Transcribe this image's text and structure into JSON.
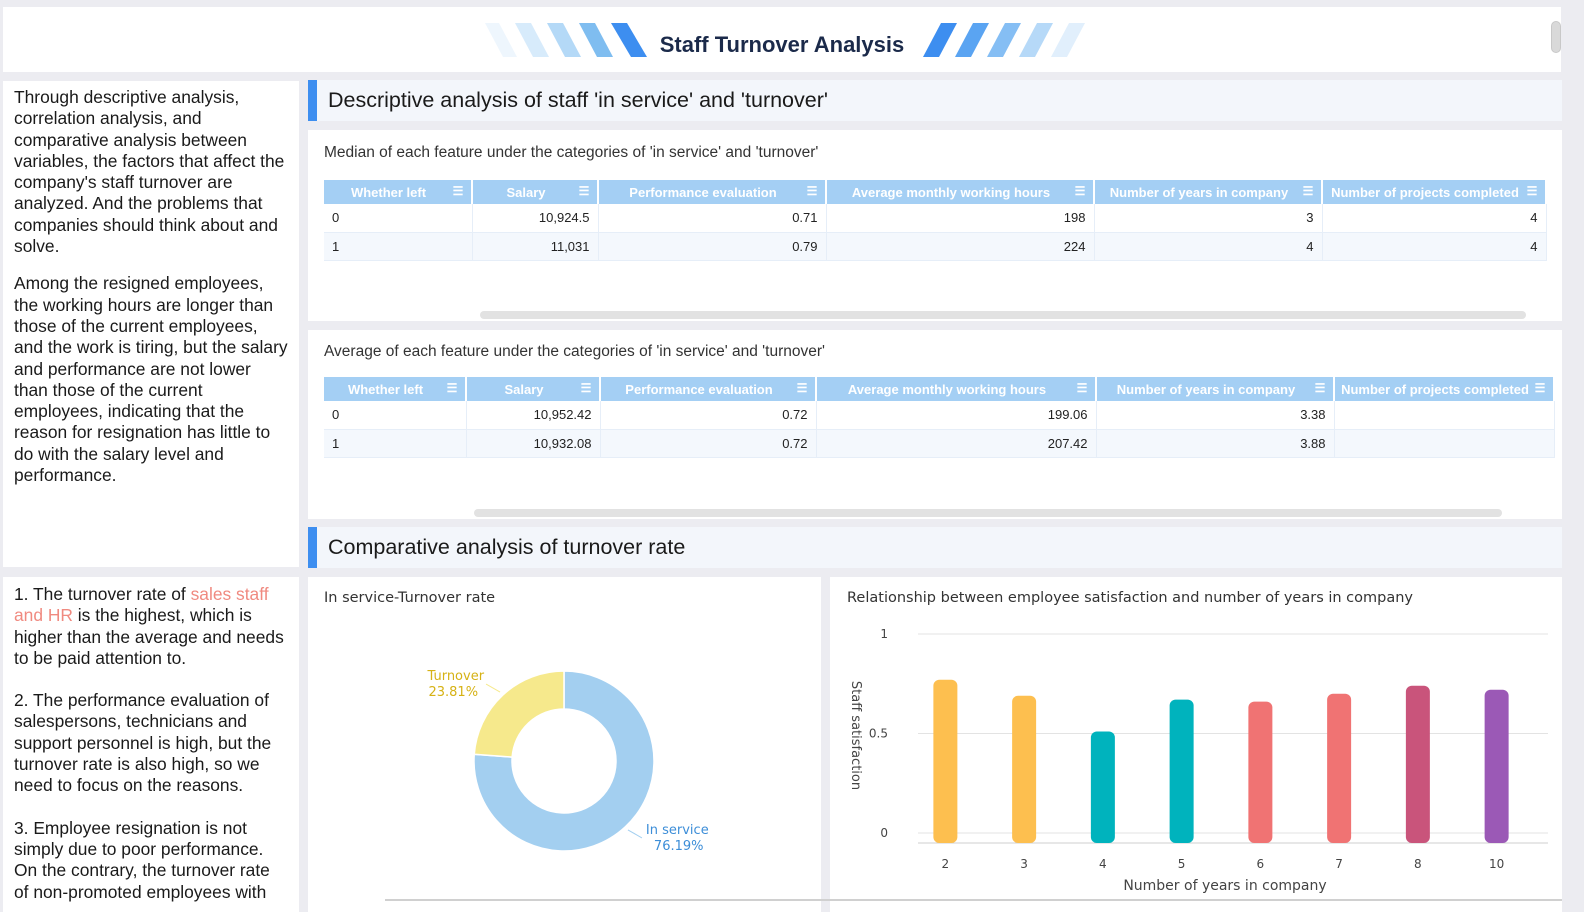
{
  "header": {
    "title": "Staff Turnover Analysis"
  },
  "left_top": {
    "paragraphs": [
      "Through descriptive analysis, correlation analysis, and comparative analysis between variables, the factors that affect the company's staff turnover are analyzed. And the problems that companies should think about and solve.",
      "Among the resigned employees, the working hours are longer than those of the current employees, and the work is tiring, but the salary and performance are not lower than those of the current employees, indicating that the reason for resignation has little to do with the salary level and performance."
    ]
  },
  "left_bottom": {
    "p1_before": "1. The turnover rate of ",
    "p1_highlight": "sales staff and HR",
    "p1_after": " is the highest, which is higher than the average and needs to be paid attention to.",
    "p2": "2. The performance evaluation of salespersons, technicians and support personnel is high, but the turnover rate is also high, so we need to focus on the reasons.",
    "p3": "3. Employee resignation is not simply due to poor performance. On the contrary, the turnover rate of non-promoted employees with"
  },
  "sections": {
    "descriptive": "Descriptive analysis of staff 'in service' and 'turnover'",
    "comparative": "Comparative analysis of turnover rate"
  },
  "median_table": {
    "caption": "Median of each feature under the categories of 'in service' and 'turnover'",
    "columns": [
      "Whether left",
      "Salary",
      "Performance evaluation",
      "Average monthly working hours",
      "Number of years in company",
      "Number of projects completed"
    ],
    "rows": [
      [
        "0",
        "10,924.5",
        "0.71",
        "198",
        "3",
        "4"
      ],
      [
        "1",
        "11,031",
        "0.79",
        "224",
        "4",
        "4"
      ]
    ]
  },
  "average_table": {
    "caption": "Average of each feature under the categories of 'in service' and 'turnover'",
    "columns": [
      "Whether left",
      "Salary",
      "Performance evaluation",
      "Average monthly working hours",
      "Number of years in company",
      "Number of projects completed"
    ],
    "rows": [
      [
        "0",
        "10,952.42",
        "0.72",
        "199.06",
        "3.38",
        ""
      ],
      [
        "1",
        "10,932.08",
        "0.72",
        "207.42",
        "3.88",
        ""
      ]
    ]
  },
  "icons": {
    "sort": "sort-icon",
    "decor_left": "stripes-left-decoration",
    "decor_right": "stripes-right-decoration"
  },
  "colors": {
    "accent": "#3d8ef0",
    "table_header": "#a4cff4",
    "highlight": "#f08a80",
    "in_service": "#a3cff0",
    "turnover": "#f6e98c"
  },
  "chart_data": [
    {
      "type": "pie",
      "title": "In service-Turnover rate",
      "donut": true,
      "slices": [
        {
          "name": "In service",
          "value": 76.19,
          "label": "76.19%",
          "color": "#a3cff0",
          "label_color": "#3d8ed8"
        },
        {
          "name": "Turnover",
          "value": 23.81,
          "label": "23.81%",
          "color": "#f6e98c",
          "label_color": "#d6b215"
        }
      ]
    },
    {
      "type": "bar",
      "title": "Relationship between employee satisfaction and number of years in company",
      "xlabel": "Number of years in company",
      "ylabel": "Staff satisfaction",
      "ylim": [
        0,
        1
      ],
      "yticks": [
        "0",
        "0.5",
        "1"
      ],
      "categories": [
        "2",
        "3",
        "4",
        "5",
        "6",
        "7",
        "8",
        "10"
      ],
      "values": [
        0.77,
        0.69,
        0.51,
        0.67,
        0.66,
        0.7,
        0.74,
        0.72
      ],
      "colors": [
        "#fdbf4f",
        "#fdbf4f",
        "#00b3bd",
        "#00b3bd",
        "#f07373",
        "#f07373",
        "#c9547b",
        "#9b59b6"
      ],
      "grid": true
    }
  ]
}
